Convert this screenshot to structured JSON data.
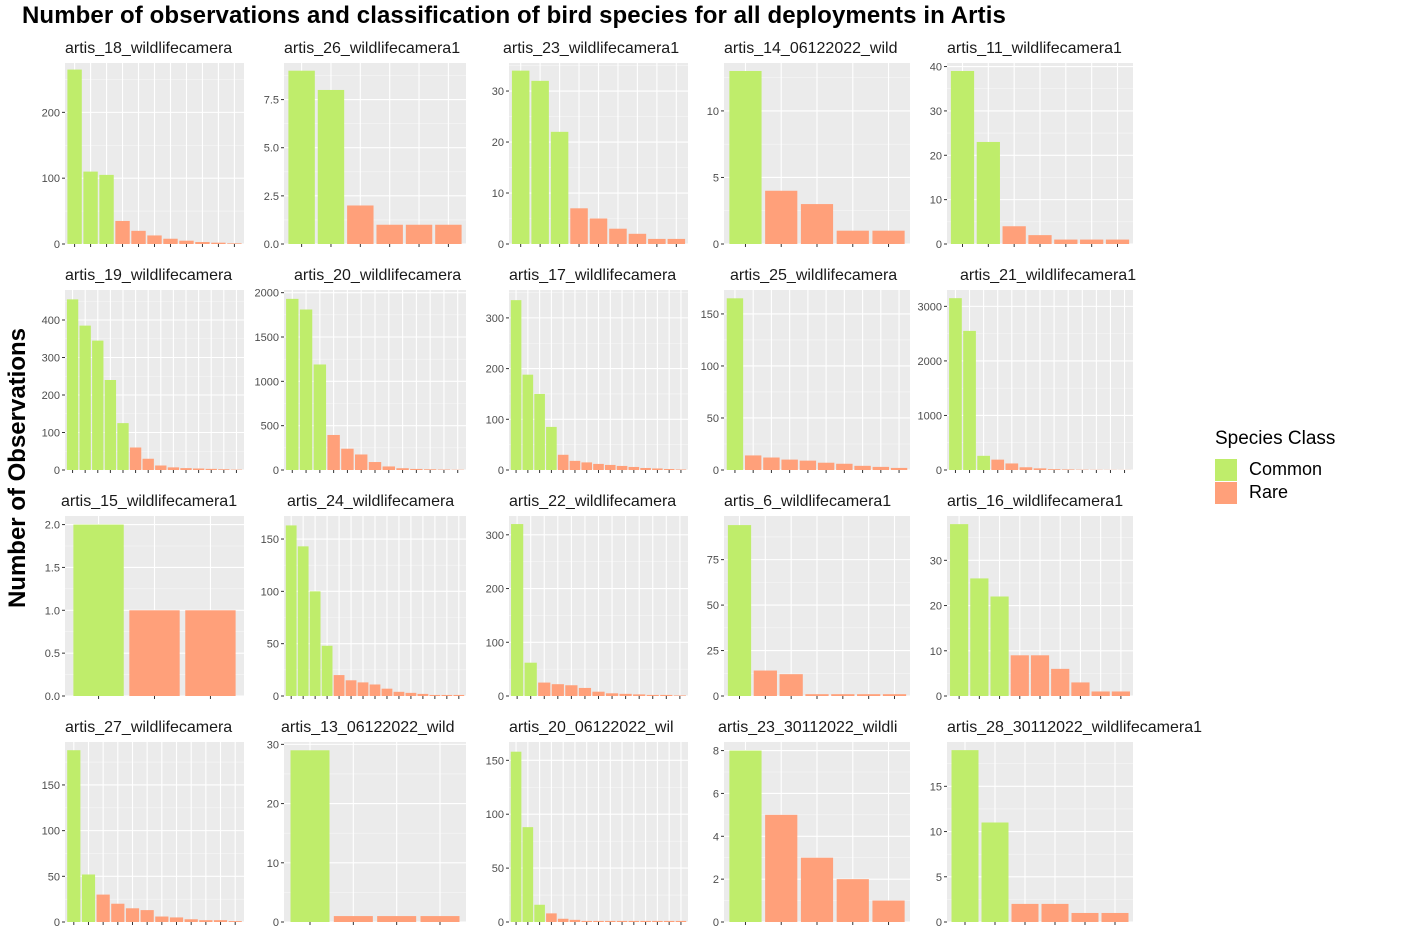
{
  "chart_data": {
    "type": "bar",
    "title": "Number of observations and classification of bird species for all deployments in Artis",
    "ylabel": "Number of Observations",
    "xlabel": "",
    "legend": {
      "title": "Species Class",
      "position": "right",
      "entries": [
        {
          "label": "Common",
          "color": "#bfed6b"
        },
        {
          "label": "Rare",
          "color": "#ffa07a"
        }
      ]
    },
    "grid": true,
    "panels": [
      {
        "title": "artis_18_wildlifecamera",
        "ylim": [
          0,
          275
        ],
        "yticks": [
          0,
          100,
          200
        ],
        "ytick_labels": [
          "0",
          "100",
          "200"
        ],
        "slots": 11,
        "values": [
          265,
          110,
          105,
          35,
          20,
          13,
          8,
          5,
          3,
          2,
          1
        ],
        "classes": [
          "Common",
          "Common",
          "Common",
          "Rare",
          "Rare",
          "Rare",
          "Rare",
          "Rare",
          "Rare",
          "Rare",
          "Rare"
        ]
      },
      {
        "title": "artis_26_wildlifecamera1",
        "ylim": [
          0,
          9.4
        ],
        "yticks": [
          0,
          2.5,
          5,
          7.5
        ],
        "ytick_labels": [
          "0.0",
          "2.5",
          "5.0",
          "7.5"
        ],
        "slots": 6,
        "values": [
          9,
          8,
          2,
          1,
          1,
          1
        ],
        "classes": [
          "Common",
          "Common",
          "Rare",
          "Rare",
          "Rare",
          "Rare"
        ]
      },
      {
        "title": "artis_23_wildlifecamera1",
        "ylim": [
          0,
          35.5
        ],
        "yticks": [
          0,
          10,
          20,
          30
        ],
        "ytick_labels": [
          "0",
          "10",
          "20",
          "30"
        ],
        "slots": 9,
        "values": [
          34,
          32,
          22,
          7,
          5,
          3,
          2,
          1,
          1
        ],
        "classes": [
          "Common",
          "Common",
          "Common",
          "Rare",
          "Rare",
          "Rare",
          "Rare",
          "Rare",
          "Rare"
        ]
      },
      {
        "title": "artis_14_06122022_wild",
        "ylim": [
          0,
          13.6
        ],
        "yticks": [
          0,
          5,
          10
        ],
        "ytick_labels": [
          "0",
          "5",
          "10"
        ],
        "slots": 5,
        "values": [
          13,
          4,
          3,
          1,
          1
        ],
        "classes": [
          "Common",
          "Rare",
          "Rare",
          "Rare",
          "Rare"
        ]
      },
      {
        "title": "artis_11_wildlifecamera1",
        "ylim": [
          0,
          40.8
        ],
        "yticks": [
          0,
          10,
          20,
          30,
          40
        ],
        "ytick_labels": [
          "0",
          "10",
          "20",
          "30",
          "40"
        ],
        "slots": 7,
        "values": [
          39,
          23,
          4,
          2,
          1,
          1,
          1
        ],
        "classes": [
          "Common",
          "Common",
          "Rare",
          "Rare",
          "Rare",
          "Rare",
          "Rare"
        ]
      },
      {
        "title": "artis_19_wildlifecamera",
        "ylim": [
          0,
          480
        ],
        "yticks": [
          0,
          100,
          200,
          300,
          400
        ],
        "ytick_labels": [
          "0",
          "100",
          "200",
          "300",
          "400"
        ],
        "slots": 14,
        "values": [
          455,
          385,
          345,
          240,
          125,
          60,
          30,
          12,
          7,
          5,
          4,
          3,
          2,
          1
        ],
        "classes": [
          "Common",
          "Common",
          "Common",
          "Common",
          "Common",
          "Rare",
          "Rare",
          "Rare",
          "Rare",
          "Rare",
          "Rare",
          "Rare",
          "Rare",
          "Rare"
        ]
      },
      {
        "title": "artis_20_wildlifecamera",
        "ylim": [
          0,
          2030
        ],
        "yticks": [
          0,
          500,
          1000,
          1500,
          2000
        ],
        "ytick_labels": [
          "0",
          "500",
          "1000",
          "1500",
          "2000"
        ],
        "slots": 13,
        "values": [
          1930,
          1810,
          1190,
          395,
          240,
          175,
          90,
          40,
          20,
          12,
          8,
          5,
          3
        ],
        "classes": [
          "Common",
          "Common",
          "Common",
          "Rare",
          "Rare",
          "Rare",
          "Rare",
          "Rare",
          "Rare",
          "Rare",
          "Rare",
          "Rare",
          "Rare"
        ]
      },
      {
        "title": "artis_17_wildlifecamera",
        "ylim": [
          0,
          355
        ],
        "yticks": [
          0,
          100,
          200,
          300
        ],
        "ytick_labels": [
          "0",
          "100",
          "200",
          "300"
        ],
        "slots": 15,
        "values": [
          335,
          188,
          150,
          85,
          30,
          18,
          15,
          12,
          10,
          8,
          6,
          4,
          3,
          2,
          1
        ],
        "classes": [
          "Common",
          "Common",
          "Common",
          "Common",
          "Rare",
          "Rare",
          "Rare",
          "Rare",
          "Rare",
          "Rare",
          "Rare",
          "Rare",
          "Rare",
          "Rare",
          "Rare"
        ]
      },
      {
        "title": "artis_25_wildlifecamera",
        "ylim": [
          0,
          173
        ],
        "yticks": [
          0,
          50,
          100,
          150
        ],
        "ytick_labels": [
          "0",
          "50",
          "100",
          "150"
        ],
        "slots": 10,
        "values": [
          165,
          14,
          12,
          10,
          9,
          7,
          6,
          4,
          3,
          2
        ],
        "classes": [
          "Common",
          "Rare",
          "Rare",
          "Rare",
          "Rare",
          "Rare",
          "Rare",
          "Rare",
          "Rare",
          "Rare"
        ]
      },
      {
        "title": "artis_21_wildlifecamera1",
        "ylim": [
          0,
          3300
        ],
        "yticks": [
          0,
          1000,
          2000,
          3000
        ],
        "ytick_labels": [
          "0",
          "1000",
          "2000",
          "3000"
        ],
        "slots": 13,
        "values": [
          3150,
          2550,
          260,
          190,
          120,
          50,
          30,
          15,
          10,
          6,
          4,
          3,
          2
        ],
        "classes": [
          "Common",
          "Common",
          "Common",
          "Rare",
          "Rare",
          "Rare",
          "Rare",
          "Rare",
          "Rare",
          "Rare",
          "Rare",
          "Rare",
          "Rare"
        ]
      },
      {
        "title": "artis_15_wildlifecamera1",
        "ylim": [
          0,
          2.1
        ],
        "yticks": [
          0,
          0.5,
          1,
          1.5,
          2
        ],
        "ytick_labels": [
          "0.0",
          "0.5",
          "1.0",
          "1.5",
          "2.0"
        ],
        "slots": 3,
        "values": [
          2,
          1,
          1
        ],
        "classes": [
          "Common",
          "Rare",
          "Rare"
        ]
      },
      {
        "title": "artis_24_wildlifecamera",
        "ylim": [
          0,
          172
        ],
        "yticks": [
          0,
          50,
          100,
          150
        ],
        "ytick_labels": [
          "0",
          "50",
          "100",
          "150"
        ],
        "slots": 15,
        "values": [
          163,
          143,
          100,
          48,
          20,
          15,
          13,
          11,
          7,
          4,
          3,
          2,
          1,
          1,
          1
        ],
        "classes": [
          "Common",
          "Common",
          "Common",
          "Common",
          "Rare",
          "Rare",
          "Rare",
          "Rare",
          "Rare",
          "Rare",
          "Rare",
          "Rare",
          "Rare",
          "Rare",
          "Rare"
        ]
      },
      {
        "title": "artis_22_wildlifecamera",
        "ylim": [
          0,
          335
        ],
        "yticks": [
          0,
          100,
          200,
          300
        ],
        "ytick_labels": [
          "0",
          "100",
          "200",
          "300"
        ],
        "slots": 13,
        "values": [
          320,
          62,
          25,
          22,
          20,
          15,
          8,
          5,
          4,
          3,
          2,
          2,
          1
        ],
        "classes": [
          "Common",
          "Common",
          "Rare",
          "Rare",
          "Rare",
          "Rare",
          "Rare",
          "Rare",
          "Rare",
          "Rare",
          "Rare",
          "Rare",
          "Rare"
        ]
      },
      {
        "title": "artis_6_wildlifecamera1",
        "ylim": [
          0,
          99
        ],
        "yticks": [
          0,
          25,
          50,
          75
        ],
        "ytick_labels": [
          "0",
          "25",
          "50",
          "75"
        ],
        "slots": 7,
        "values": [
          94,
          14,
          12,
          1,
          1,
          1,
          1
        ],
        "classes": [
          "Common",
          "Rare",
          "Rare",
          "Rare",
          "Rare",
          "Rare",
          "Rare"
        ]
      },
      {
        "title": "artis_16_wildlifecamera1",
        "ylim": [
          0,
          39.8
        ],
        "yticks": [
          0,
          10,
          20,
          30
        ],
        "ytick_labels": [
          "0",
          "10",
          "20",
          "30"
        ],
        "slots": 9,
        "values": [
          38,
          26,
          22,
          9,
          9,
          6,
          3,
          1,
          1
        ],
        "classes": [
          "Common",
          "Common",
          "Common",
          "Rare",
          "Rare",
          "Rare",
          "Rare",
          "Rare",
          "Rare"
        ]
      },
      {
        "title": "artis_27_wildlifecamera",
        "ylim": [
          0,
          197
        ],
        "yticks": [
          0,
          50,
          100,
          150
        ],
        "ytick_labels": [
          "0",
          "50",
          "100",
          "150"
        ],
        "slots": 12,
        "values": [
          188,
          52,
          30,
          20,
          15,
          13,
          6,
          5,
          3,
          2,
          2,
          1
        ],
        "classes": [
          "Common",
          "Common",
          "Rare",
          "Rare",
          "Rare",
          "Rare",
          "Rare",
          "Rare",
          "Rare",
          "Rare",
          "Rare",
          "Rare"
        ]
      },
      {
        "title": "artis_13_06122022_wild",
        "ylim": [
          0,
          30.4
        ],
        "yticks": [
          0,
          10,
          20,
          30
        ],
        "ytick_labels": [
          "0",
          "10",
          "20",
          "30"
        ],
        "slots": 4,
        "values": [
          29,
          1,
          1,
          1
        ],
        "classes": [
          "Common",
          "Rare",
          "Rare",
          "Rare"
        ]
      },
      {
        "title": "artis_20_06122022_wil",
        "ylim": [
          0,
          167
        ],
        "yticks": [
          0,
          50,
          100,
          150
        ],
        "ytick_labels": [
          "0",
          "50",
          "100",
          "150"
        ],
        "slots": 15,
        "values": [
          158,
          88,
          16,
          8,
          3,
          2,
          1,
          1,
          1,
          1,
          1,
          1,
          1,
          1,
          1
        ],
        "classes": [
          "Common",
          "Common",
          "Common",
          "Rare",
          "Rare",
          "Rare",
          "Rare",
          "Rare",
          "Rare",
          "Rare",
          "Rare",
          "Rare",
          "Rare",
          "Rare",
          "Rare"
        ]
      },
      {
        "title": "artis_23_30112022_wildli",
        "ylim": [
          0,
          8.4
        ],
        "yticks": [
          0,
          2,
          4,
          6,
          8
        ],
        "ytick_labels": [
          "0",
          "2",
          "4",
          "6",
          "8"
        ],
        "slots": 5,
        "values": [
          8,
          5,
          3,
          2,
          1
        ],
        "classes": [
          "Common",
          "Rare",
          "Rare",
          "Rare",
          "Rare"
        ]
      },
      {
        "title": "artis_28_30112022_wildlifecamera1",
        "ylim": [
          0,
          19.9
        ],
        "yticks": [
          0,
          5,
          10,
          15
        ],
        "ytick_labels": [
          "0",
          "5",
          "10",
          "15"
        ],
        "slots": 6,
        "values": [
          19,
          11,
          2,
          2,
          1,
          1
        ],
        "classes": [
          "Common",
          "Common",
          "Rare",
          "Rare",
          "Rare",
          "Rare"
        ]
      }
    ]
  }
}
